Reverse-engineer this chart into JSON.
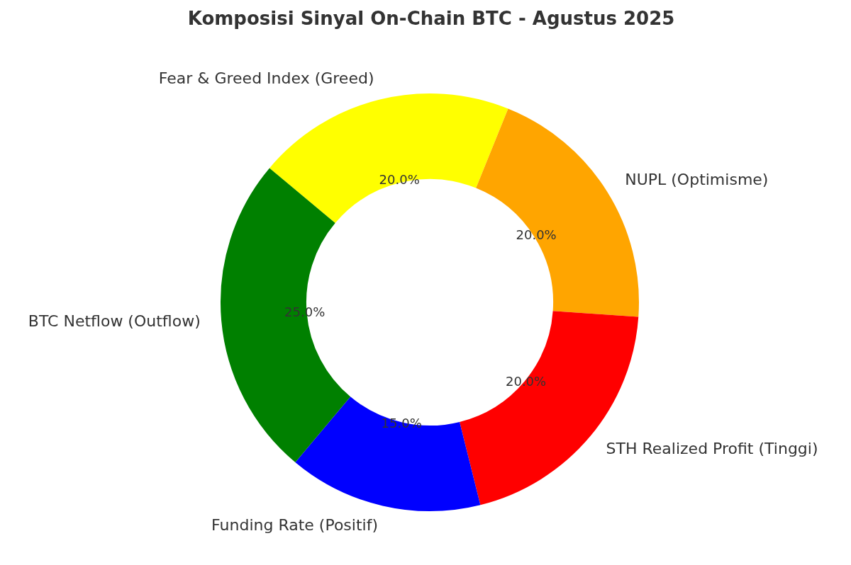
{
  "chart_data": {
    "type": "donut",
    "title": "Komposisi Sinyal On-Chain BTC - Agustus 2025",
    "categories": [
      "Fear & Greed Index (Greed)",
      "NUPL (Optimisme)",
      "STH Realized Profit (Tinggi)",
      "Funding Rate (Positif)",
      "BTC Netflow (Outflow)"
    ],
    "values": [
      20,
      20,
      20,
      15,
      25
    ],
    "colors": [
      "#ffff00",
      "#ffa500",
      "#ff0000",
      "#0000ff",
      "#008000"
    ],
    "value_labels": [
      "20.0%",
      "20.0%",
      "20.0%",
      "15.0%",
      "25.0%"
    ],
    "legend": false
  }
}
